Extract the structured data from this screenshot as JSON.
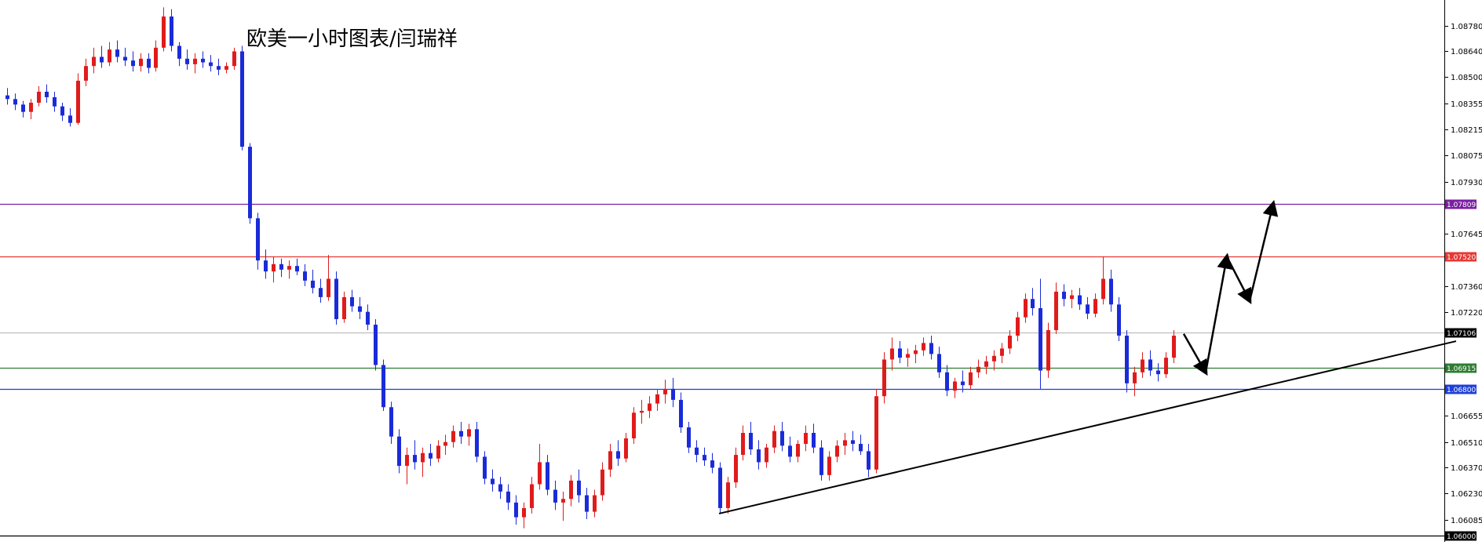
{
  "chart_data": {
    "type": "candlestick",
    "title": "欧美一小时图表/闫瑞祥",
    "instrument_note": "",
    "colors": {
      "up": "#e01b1b",
      "down": "#1a2bd9",
      "background": "#ffffff",
      "axis": "#000000"
    },
    "y_axis": {
      "position": "right",
      "min": 1.06,
      "max": 1.0892,
      "ticks": [
        "1.08780",
        "1.08640",
        "1.08500",
        "1.08355",
        "1.08215",
        "1.08075",
        "1.07930",
        "1.07645",
        "1.07360",
        "1.07220",
        "1.06655",
        "1.06510",
        "1.06370",
        "1.06230",
        "1.06085"
      ]
    },
    "horizontal_levels": [
      {
        "value": 1.07809,
        "label": "1.07809",
        "color": "#7b1fa2"
      },
      {
        "value": 1.0752,
        "label": "1.07520",
        "color": "#e53935"
      },
      {
        "value": 1.07106,
        "label": "1.07106",
        "color": "#bdbdbd",
        "badge_color": "#000000"
      },
      {
        "value": 1.06915,
        "label": "1.06915",
        "color": "#2e7d32"
      },
      {
        "value": 1.068,
        "label": "1.06800",
        "color": "#1e3fd8"
      },
      {
        "value": 1.06,
        "label": "1.06000",
        "color": "#000000",
        "badge_color": "#000000"
      }
    ],
    "trendline": {
      "points": [
        [
          0,
          1.0612
        ],
        [
          239,
          1.0706
        ]
      ],
      "color": "#000000"
    },
    "projection_arrows": {
      "points": [
        [
          196,
          1.071
        ],
        [
          208,
          1.0689
        ],
        [
          215,
          1.0752
        ],
        [
          224,
          1.0728
        ],
        [
          233,
          1.07809
        ]
      ],
      "color": "#000000"
    },
    "candles": {
      "x_range": [
        0,
        240
      ],
      "ohlc": [
        [
          1.084,
          1.0844,
          1.0835,
          1.0838
        ],
        [
          1.0838,
          1.0841,
          1.0832,
          1.0835
        ],
        [
          1.0835,
          1.0837,
          1.0828,
          1.0831
        ],
        [
          1.0831,
          1.0838,
          1.0827,
          1.0836
        ],
        [
          1.0836,
          1.0845,
          1.0834,
          1.0842
        ],
        [
          1.0842,
          1.0846,
          1.0836,
          1.0839
        ],
        [
          1.0839,
          1.0842,
          1.0831,
          1.0834
        ],
        [
          1.0834,
          1.0836,
          1.0826,
          1.0829
        ],
        [
          1.0829,
          1.0833,
          1.0823,
          1.0825
        ],
        [
          1.0825,
          1.0852,
          1.0824,
          1.0848
        ],
        [
          1.0848,
          1.086,
          1.0845,
          1.0856
        ],
        [
          1.0856,
          1.0866,
          1.0852,
          1.0861
        ],
        [
          1.0861,
          1.0867,
          1.0855,
          1.0858
        ],
        [
          1.0858,
          1.0869,
          1.0856,
          1.0865
        ],
        [
          1.0865,
          1.087,
          1.0858,
          1.0861
        ],
        [
          1.0861,
          1.0866,
          1.0856,
          1.0859
        ],
        [
          1.0859,
          1.0864,
          1.0853,
          1.0856
        ],
        [
          1.0856,
          1.0863,
          1.0853,
          1.086
        ],
        [
          1.086,
          1.0863,
          1.0852,
          1.0855
        ],
        [
          1.0855,
          1.087,
          1.0853,
          1.0866
        ],
        [
          1.0866,
          1.0888,
          1.0864,
          1.0883
        ],
        [
          1.0883,
          1.0887,
          1.0864,
          1.0867
        ],
        [
          1.0867,
          1.0869,
          1.0856,
          1.086
        ],
        [
          1.086,
          1.0865,
          1.0854,
          1.0857
        ],
        [
          1.0857,
          1.0863,
          1.0852,
          1.086
        ],
        [
          1.086,
          1.0864,
          1.0855,
          1.0858
        ],
        [
          1.0858,
          1.0862,
          1.0853,
          1.0856
        ],
        [
          1.0856,
          1.086,
          1.0851,
          1.0854
        ],
        [
          1.0854,
          1.0858,
          1.0852,
          1.0856
        ],
        [
          1.0856,
          1.0866,
          1.0854,
          1.0864
        ],
        [
          1.0864,
          1.0867,
          1.081,
          1.0812
        ],
        [
          1.0812,
          1.0814,
          1.077,
          1.0773
        ],
        [
          1.0773,
          1.0776,
          1.0745,
          1.075
        ],
        [
          1.075,
          1.0756,
          1.074,
          1.0744
        ],
        [
          1.0744,
          1.0752,
          1.0738,
          1.0748
        ],
        [
          1.0748,
          1.0751,
          1.0741,
          1.0745
        ],
        [
          1.0745,
          1.075,
          1.074,
          1.0747
        ],
        [
          1.0747,
          1.0751,
          1.0742,
          1.0744
        ],
        [
          1.0744,
          1.0748,
          1.0736,
          1.0739
        ],
        [
          1.0739,
          1.0745,
          1.0732,
          1.0735
        ],
        [
          1.0735,
          1.074,
          1.0727,
          1.073
        ],
        [
          1.073,
          1.0753,
          1.0728,
          1.074
        ],
        [
          1.074,
          1.0744,
          1.0715,
          1.0718
        ],
        [
          1.0718,
          1.0733,
          1.0716,
          1.073
        ],
        [
          1.073,
          1.0734,
          1.0722,
          1.0725
        ],
        [
          1.0725,
          1.073,
          1.0718,
          1.0722
        ],
        [
          1.0722,
          1.0726,
          1.0712,
          1.0715
        ],
        [
          1.0715,
          1.0718,
          1.069,
          1.0693
        ],
        [
          1.0693,
          1.0696,
          1.0668,
          1.067
        ],
        [
          1.067,
          1.0673,
          1.065,
          1.0654
        ],
        [
          1.0654,
          1.0658,
          1.0634,
          1.0638
        ],
        [
          1.0638,
          1.0648,
          1.0628,
          1.0644
        ],
        [
          1.0644,
          1.0652,
          1.0636,
          1.064
        ],
        [
          1.064,
          1.0648,
          1.0632,
          1.0645
        ],
        [
          1.0645,
          1.065,
          1.0638,
          1.0642
        ],
        [
          1.0642,
          1.0652,
          1.064,
          1.0649
        ],
        [
          1.0649,
          1.0655,
          1.0644,
          1.0651
        ],
        [
          1.0651,
          1.066,
          1.0648,
          1.0657
        ],
        [
          1.0657,
          1.0662,
          1.065,
          1.0654
        ],
        [
          1.0654,
          1.0661,
          1.0649,
          1.0658
        ],
        [
          1.0658,
          1.0662,
          1.064,
          1.0643
        ],
        [
          1.0643,
          1.0646,
          1.0628,
          1.0631
        ],
        [
          1.0631,
          1.0636,
          1.0624,
          1.0628
        ],
        [
          1.0628,
          1.0632,
          1.062,
          1.0624
        ],
        [
          1.0624,
          1.0628,
          1.0614,
          1.0618
        ],
        [
          1.0618,
          1.0622,
          1.0606,
          1.061
        ],
        [
          1.061,
          1.0618,
          1.0604,
          1.0615
        ],
        [
          1.0615,
          1.0632,
          1.0612,
          1.0628
        ],
        [
          1.0628,
          1.065,
          1.0625,
          1.064
        ],
        [
          1.064,
          1.0644,
          1.0622,
          1.0625
        ],
        [
          1.0625,
          1.063,
          1.0614,
          1.0618
        ],
        [
          1.0618,
          1.0624,
          1.0608,
          1.062
        ],
        [
          1.062,
          1.0633,
          1.0616,
          1.063
        ],
        [
          1.063,
          1.0636,
          1.0618,
          1.0622
        ],
        [
          1.0622,
          1.0626,
          1.0609,
          1.0613
        ],
        [
          1.0613,
          1.0625,
          1.061,
          1.0622
        ],
        [
          1.0622,
          1.064,
          1.0619,
          1.0636
        ],
        [
          1.0636,
          1.065,
          1.0632,
          1.0646
        ],
        [
          1.0646,
          1.0652,
          1.0638,
          1.0642
        ],
        [
          1.0642,
          1.0656,
          1.064,
          1.0653
        ],
        [
          1.0653,
          1.067,
          1.065,
          1.0667
        ],
        [
          1.0667,
          1.0674,
          1.0661,
          1.0668
        ],
        [
          1.0668,
          1.0676,
          1.0664,
          1.0672
        ],
        [
          1.0672,
          1.068,
          1.0668,
          1.0677
        ],
        [
          1.0677,
          1.0685,
          1.0672,
          1.068
        ],
        [
          1.068,
          1.0686,
          1.067,
          1.0674
        ],
        [
          1.0674,
          1.0678,
          1.0656,
          1.0659
        ],
        [
          1.0659,
          1.0662,
          1.0645,
          1.0648
        ],
        [
          1.0648,
          1.0652,
          1.064,
          1.0644
        ],
        [
          1.0644,
          1.0648,
          1.0638,
          1.0641
        ],
        [
          1.0641,
          1.0645,
          1.0634,
          1.0637
        ],
        [
          1.0637,
          1.064,
          1.0612,
          1.0615
        ],
        [
          1.0615,
          1.0632,
          1.0612,
          1.0629
        ],
        [
          1.0629,
          1.0648,
          1.0626,
          1.0644
        ],
        [
          1.0644,
          1.066,
          1.0641,
          1.0656
        ],
        [
          1.0656,
          1.0662,
          1.0644,
          1.0647
        ],
        [
          1.0647,
          1.0652,
          1.0636,
          1.064
        ],
        [
          1.064,
          1.065,
          1.0637,
          1.0648
        ],
        [
          1.0648,
          1.066,
          1.0645,
          1.0657
        ],
        [
          1.0657,
          1.0662,
          1.0646,
          1.0649
        ],
        [
          1.0649,
          1.0654,
          1.064,
          1.0643
        ],
        [
          1.0643,
          1.0652,
          1.064,
          1.065
        ],
        [
          1.065,
          1.066,
          1.0646,
          1.0656
        ],
        [
          1.0656,
          1.0661,
          1.0645,
          1.0648
        ],
        [
          1.0648,
          1.0652,
          1.063,
          1.0633
        ],
        [
          1.0633,
          1.0646,
          1.063,
          1.0643
        ],
        [
          1.0643,
          1.0652,
          1.064,
          1.0649
        ],
        [
          1.0649,
          1.0656,
          1.0644,
          1.0652
        ],
        [
          1.0652,
          1.0657,
          1.0646,
          1.065
        ],
        [
          1.065,
          1.0655,
          1.0644,
          1.0646
        ],
        [
          1.0646,
          1.065,
          1.0632,
          1.0636
        ],
        [
          1.0636,
          1.068,
          1.0634,
          1.0676
        ],
        [
          1.0676,
          1.07,
          1.0672,
          1.0696
        ],
        [
          1.0696,
          1.0708,
          1.069,
          1.0702
        ],
        [
          1.0702,
          1.0706,
          1.0694,
          1.0697
        ],
        [
          1.0697,
          1.0702,
          1.0692,
          1.0699
        ],
        [
          1.0699,
          1.0704,
          1.0694,
          1.0701
        ],
        [
          1.0701,
          1.0708,
          1.0698,
          1.0705
        ],
        [
          1.0705,
          1.0709,
          1.0696,
          1.0699
        ],
        [
          1.0699,
          1.0703,
          1.0686,
          1.0689
        ],
        [
          1.0689,
          1.0693,
          1.0676,
          1.0679
        ],
        [
          1.0679,
          1.0686,
          1.0675,
          1.0684
        ],
        [
          1.0684,
          1.069,
          1.0678,
          1.0682
        ],
        [
          1.0682,
          1.0692,
          1.068,
          1.0689
        ],
        [
          1.0689,
          1.0696,
          1.0686,
          1.0692
        ],
        [
          1.0692,
          1.0698,
          1.0688,
          1.0695
        ],
        [
          1.0695,
          1.0701,
          1.069,
          1.0698
        ],
        [
          1.0698,
          1.0705,
          1.0694,
          1.0702
        ],
        [
          1.0702,
          1.0712,
          1.0699,
          1.0709
        ],
        [
          1.0709,
          1.0722,
          1.0706,
          1.0719
        ],
        [
          1.0719,
          1.0732,
          1.0716,
          1.0729
        ],
        [
          1.0729,
          1.0735,
          1.072,
          1.0724
        ],
        [
          1.0724,
          1.074,
          1.068,
          1.069
        ],
        [
          1.069,
          1.0716,
          1.0686,
          1.0712
        ],
        [
          1.0712,
          1.0738,
          1.071,
          1.0733
        ],
        [
          1.0733,
          1.0737,
          1.0725,
          1.0729
        ],
        [
          1.0729,
          1.0734,
          1.0724,
          1.0731
        ],
        [
          1.0731,
          1.0735,
          1.0723,
          1.0726
        ],
        [
          1.0726,
          1.073,
          1.0718,
          1.0721
        ],
        [
          1.0721,
          1.0732,
          1.0719,
          1.0729
        ],
        [
          1.0729,
          1.0752,
          1.0726,
          1.074
        ],
        [
          1.074,
          1.0745,
          1.0722,
          1.0726
        ],
        [
          1.0726,
          1.073,
          1.0706,
          1.0709
        ],
        [
          1.0709,
          1.0712,
          1.0678,
          1.0683
        ],
        [
          1.0683,
          1.0692,
          1.0676,
          1.0689
        ],
        [
          1.0689,
          1.07,
          1.0686,
          1.0696
        ],
        [
          1.0696,
          1.0701,
          1.0687,
          1.069
        ],
        [
          1.069,
          1.0694,
          1.0684,
          1.0688
        ],
        [
          1.0688,
          1.07,
          1.0686,
          1.0697
        ],
        [
          1.0697,
          1.0712,
          1.0694,
          1.0709
        ]
      ]
    }
  }
}
